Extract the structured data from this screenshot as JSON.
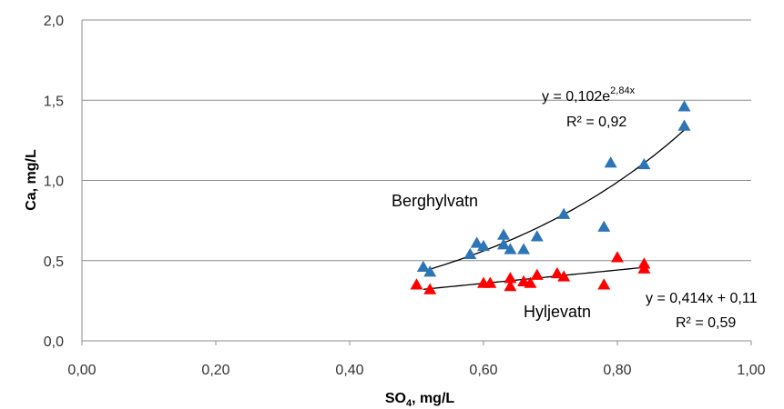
{
  "chart_data": {
    "type": "scatter",
    "title": "",
    "xlabel": "SO",
    "xlabel_sub": "4",
    "xlabel_suffix": ", mg/L",
    "ylabel": "Ca, mg/L",
    "xlim": [
      0,
      1
    ],
    "ylim": [
      0,
      2
    ],
    "x_ticks": [
      "0,00",
      "0,20",
      "0,40",
      "0,60",
      "0,80",
      "1,00"
    ],
    "y_ticks": [
      "0,0",
      "0,5",
      "1,0",
      "1,5",
      "2,0"
    ],
    "grid": "horizontal",
    "series": [
      {
        "name": "Berghylvatn",
        "color": "#2E75B6",
        "marker": "triangle",
        "points": [
          [
            0.51,
            0.46
          ],
          [
            0.52,
            0.43
          ],
          [
            0.58,
            0.54
          ],
          [
            0.59,
            0.61
          ],
          [
            0.6,
            0.59
          ],
          [
            0.63,
            0.66
          ],
          [
            0.63,
            0.6
          ],
          [
            0.64,
            0.57
          ],
          [
            0.66,
            0.57
          ],
          [
            0.68,
            0.65
          ],
          [
            0.72,
            0.79
          ],
          [
            0.78,
            0.71
          ],
          [
            0.79,
            1.11
          ],
          [
            0.84,
            1.1
          ],
          [
            0.9,
            1.46
          ],
          [
            0.9,
            1.34
          ]
        ],
        "trend": {
          "kind": "exponential",
          "a": 0.102,
          "b": 2.84,
          "x_range": [
            0.51,
            0.9
          ]
        },
        "equation": "y = 0,102e",
        "equation_exp": "2,84x",
        "r2": "R² = 0,92"
      },
      {
        "name": "Hyljevatn",
        "color": "#FF0000",
        "marker": "triangle",
        "points": [
          [
            0.5,
            0.35
          ],
          [
            0.52,
            0.32
          ],
          [
            0.6,
            0.36
          ],
          [
            0.61,
            0.36
          ],
          [
            0.64,
            0.39
          ],
          [
            0.64,
            0.34
          ],
          [
            0.66,
            0.37
          ],
          [
            0.67,
            0.36
          ],
          [
            0.68,
            0.41
          ],
          [
            0.71,
            0.42
          ],
          [
            0.72,
            0.4
          ],
          [
            0.78,
            0.35
          ],
          [
            0.8,
            0.52
          ],
          [
            0.84,
            0.48
          ],
          [
            0.84,
            0.45
          ]
        ],
        "trend": {
          "kind": "linear",
          "slope": 0.414,
          "intercept": 0.11,
          "x_range": [
            0.51,
            0.84
          ]
        },
        "equation": "y = 0,414x + 0,11",
        "r2": "R² = 0,59"
      }
    ]
  }
}
